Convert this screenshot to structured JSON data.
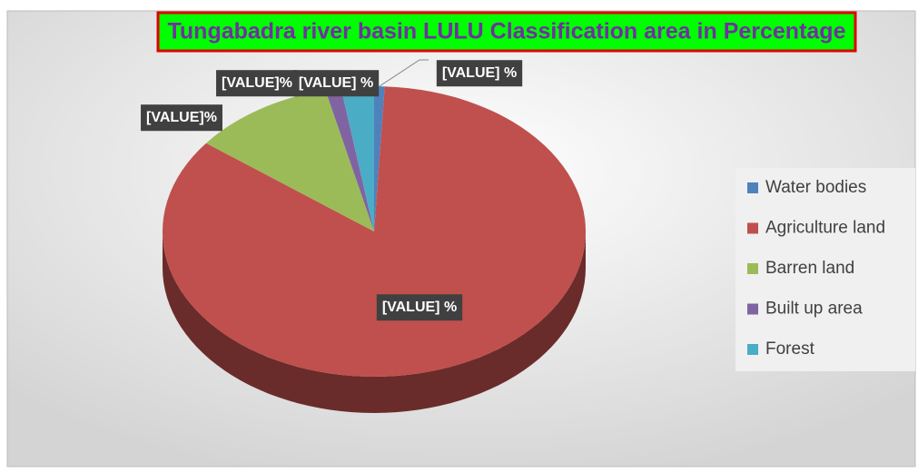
{
  "chart_data": {
    "type": "pie",
    "title": "Tungabadra river basin LULU Classification area in Percentage",
    "categories": [
      "Water bodies",
      "Agriculture land",
      "Barren land",
      "Built up area",
      "Forest"
    ],
    "values": [
      0.8,
      84.6,
      10.9,
      1.2,
      2.5
    ],
    "value_labels": [
      "[VALUE] %",
      "[VALUE] %",
      "[VALUE]%",
      "[VALUE]%",
      "[VALUE] %"
    ],
    "colors": [
      "#4f81bd",
      "#c0504d",
      "#9bbb59",
      "#8064a2",
      "#4bacc6"
    ],
    "legend": "right"
  }
}
